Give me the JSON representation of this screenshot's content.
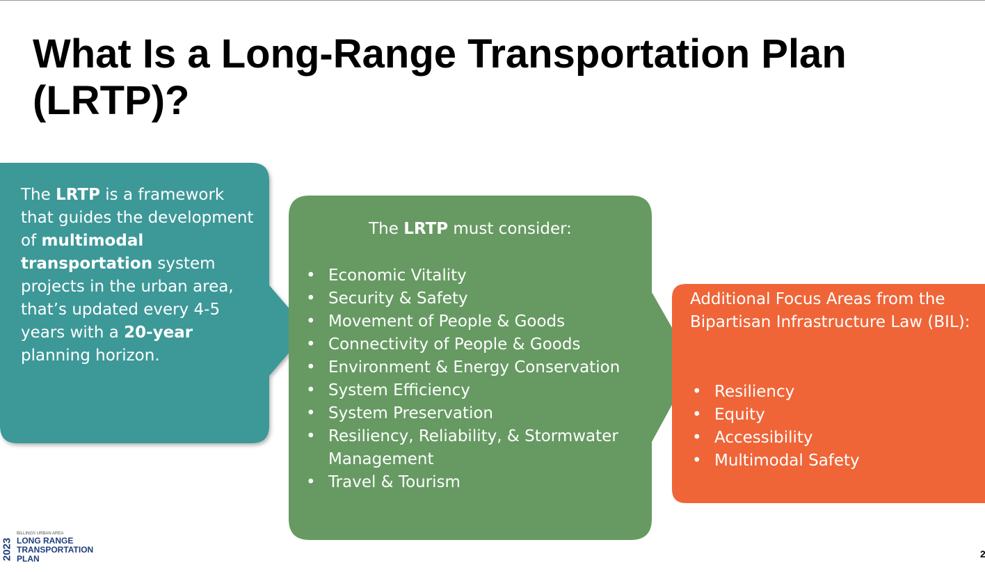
{
  "header": {
    "title": "What Is a Long-Range Transportation Plan (LRTP)?"
  },
  "definition": {
    "runs": [
      {
        "text": "The ",
        "bold": false
      },
      {
        "text": "LRTP",
        "bold": true
      },
      {
        "text": " is a framework that guides the development of ",
        "bold": false
      },
      {
        "text": "multimodal transportation",
        "bold": true
      },
      {
        "text": " system projects in the urban area, that’s updated every 4-5 years with a ",
        "bold": false
      },
      {
        "text": "20-year",
        "bold": true
      },
      {
        "text": " planning horizon.",
        "bold": false
      }
    ]
  },
  "considerations": {
    "heading_runs": [
      {
        "text": "The ",
        "bold": false
      },
      {
        "text": "LRTP",
        "bold": true
      },
      {
        "text": " must consider:",
        "bold": false
      }
    ],
    "items": [
      "Economic Vitality",
      "Security & Safety",
      "Movement of People & Goods",
      "Connectivity of People & Goods",
      "Environment & Energy Conservation",
      "System Efficiency",
      "System Preservation",
      "Resiliency, Reliability, & Stormwater Management",
      "Travel & Tourism"
    ]
  },
  "focus_areas": {
    "heading": "Additional Focus Areas from the Bipartisan Infrastructure Law (BIL):",
    "items": [
      "Resiliency",
      "Equity",
      "Accessibility",
      "Multimodal Safety"
    ]
  },
  "logo": {
    "year": "2023",
    "area": "BILLINGS URBAN AREA",
    "lines": [
      "LONG RANGE",
      "TRANSPORTATION",
      "PLAN"
    ]
  },
  "page_number": "2"
}
